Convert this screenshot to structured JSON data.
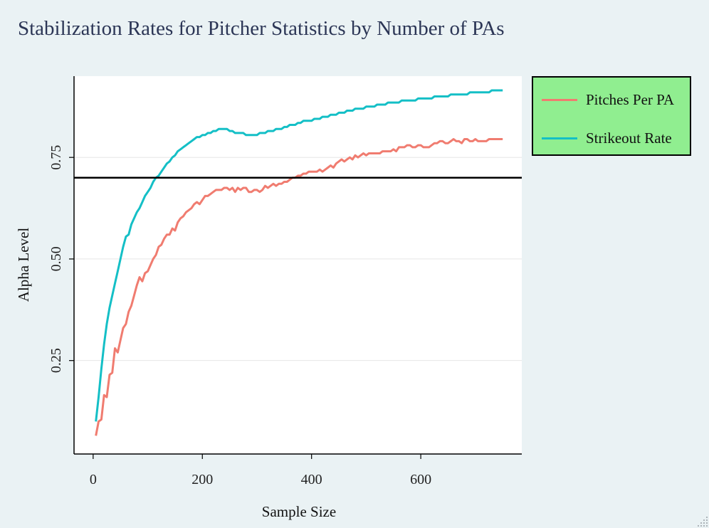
{
  "chart_data": {
    "type": "line",
    "title": "Stabilization Rates for Pitcher Statistics by Number of PAs",
    "xlabel": "Sample Size",
    "ylabel": "Alpha Level",
    "xlim": [
      -35,
      785
    ],
    "ylim": [
      0.02,
      0.95
    ],
    "x_ticks": [
      0,
      200,
      400,
      600
    ],
    "x_tick_labels": [
      "0",
      "200",
      "400",
      "600"
    ],
    "y_ticks": [
      0.25,
      0.5,
      0.75
    ],
    "y_tick_labels": [
      "0.25",
      "0.50",
      "0.75"
    ],
    "grid": "horizontal",
    "reference_line": {
      "y": 0.7,
      "color": "#000000"
    },
    "legend": {
      "placement": "right-top",
      "background": "#90ee90"
    },
    "series": [
      {
        "name": "Pitches Per PA",
        "color": "#f07c70",
        "x": [
          5,
          10,
          15,
          20,
          25,
          30,
          35,
          40,
          45,
          50,
          55,
          60,
          65,
          70,
          75,
          80,
          85,
          90,
          95,
          100,
          105,
          110,
          115,
          120,
          125,
          130,
          135,
          140,
          145,
          150,
          155,
          160,
          165,
          170,
          175,
          180,
          185,
          190,
          195,
          200,
          205,
          210,
          215,
          220,
          225,
          230,
          235,
          240,
          245,
          250,
          255,
          260,
          265,
          270,
          275,
          280,
          285,
          290,
          295,
          300,
          305,
          310,
          315,
          320,
          325,
          330,
          335,
          340,
          345,
          350,
          355,
          360,
          365,
          370,
          375,
          380,
          385,
          390,
          395,
          400,
          405,
          410,
          415,
          420,
          425,
          430,
          435,
          440,
          445,
          450,
          455,
          460,
          465,
          470,
          475,
          480,
          485,
          490,
          495,
          500,
          505,
          510,
          515,
          520,
          525,
          530,
          535,
          540,
          545,
          550,
          555,
          560,
          565,
          570,
          575,
          580,
          585,
          590,
          595,
          600,
          605,
          610,
          615,
          620,
          625,
          630,
          635,
          640,
          645,
          650,
          655,
          660,
          665,
          670,
          675,
          680,
          685,
          690,
          695,
          700,
          705,
          710,
          715,
          720,
          725,
          730,
          735,
          740,
          745,
          750
        ],
        "values": [
          0.065,
          0.1,
          0.105,
          0.165,
          0.16,
          0.215,
          0.22,
          0.28,
          0.27,
          0.3,
          0.33,
          0.34,
          0.37,
          0.385,
          0.41,
          0.435,
          0.455,
          0.445,
          0.465,
          0.47,
          0.485,
          0.5,
          0.51,
          0.53,
          0.535,
          0.55,
          0.56,
          0.56,
          0.575,
          0.57,
          0.59,
          0.6,
          0.605,
          0.615,
          0.62,
          0.625,
          0.635,
          0.64,
          0.635,
          0.645,
          0.655,
          0.655,
          0.66,
          0.665,
          0.67,
          0.67,
          0.67,
          0.675,
          0.675,
          0.67,
          0.675,
          0.665,
          0.675,
          0.67,
          0.675,
          0.675,
          0.665,
          0.665,
          0.67,
          0.67,
          0.665,
          0.67,
          0.68,
          0.675,
          0.68,
          0.685,
          0.68,
          0.685,
          0.685,
          0.69,
          0.69,
          0.695,
          0.7,
          0.7,
          0.705,
          0.705,
          0.71,
          0.71,
          0.715,
          0.715,
          0.715,
          0.715,
          0.72,
          0.715,
          0.72,
          0.725,
          0.73,
          0.725,
          0.735,
          0.74,
          0.745,
          0.74,
          0.745,
          0.75,
          0.745,
          0.755,
          0.75,
          0.755,
          0.76,
          0.755,
          0.76,
          0.76,
          0.76,
          0.76,
          0.76,
          0.765,
          0.765,
          0.765,
          0.765,
          0.77,
          0.765,
          0.775,
          0.775,
          0.775,
          0.78,
          0.78,
          0.775,
          0.775,
          0.78,
          0.78,
          0.775,
          0.775,
          0.775,
          0.78,
          0.785,
          0.785,
          0.79,
          0.79,
          0.785,
          0.785,
          0.79,
          0.795,
          0.79,
          0.79,
          0.785,
          0.795,
          0.795,
          0.79,
          0.79,
          0.795,
          0.79,
          0.79,
          0.79,
          0.79,
          0.795,
          0.795,
          0.795,
          0.795,
          0.795,
          0.795
        ]
      },
      {
        "name": "Strikeout Rate",
        "color": "#14bfc6",
        "x": [
          5,
          10,
          15,
          20,
          25,
          30,
          35,
          40,
          45,
          50,
          55,
          60,
          65,
          70,
          75,
          80,
          85,
          90,
          95,
          100,
          105,
          110,
          115,
          120,
          125,
          130,
          135,
          140,
          145,
          150,
          155,
          160,
          165,
          170,
          175,
          180,
          185,
          190,
          195,
          200,
          205,
          210,
          215,
          220,
          225,
          230,
          235,
          240,
          245,
          250,
          255,
          260,
          265,
          270,
          275,
          280,
          285,
          290,
          295,
          300,
          305,
          310,
          315,
          320,
          325,
          330,
          335,
          340,
          345,
          350,
          355,
          360,
          365,
          370,
          375,
          380,
          385,
          390,
          395,
          400,
          405,
          410,
          415,
          420,
          425,
          430,
          435,
          440,
          445,
          450,
          455,
          460,
          465,
          470,
          475,
          480,
          485,
          490,
          495,
          500,
          505,
          510,
          515,
          520,
          525,
          530,
          535,
          540,
          545,
          550,
          555,
          560,
          565,
          570,
          575,
          580,
          585,
          590,
          595,
          600,
          605,
          610,
          615,
          620,
          625,
          630,
          635,
          640,
          645,
          650,
          655,
          660,
          665,
          670,
          675,
          680,
          685,
          690,
          695,
          700,
          705,
          710,
          715,
          720,
          725,
          730,
          735,
          740,
          745,
          750
        ],
        "values": [
          0.1,
          0.16,
          0.23,
          0.29,
          0.34,
          0.38,
          0.41,
          0.44,
          0.47,
          0.5,
          0.53,
          0.555,
          0.56,
          0.585,
          0.6,
          0.615,
          0.625,
          0.64,
          0.655,
          0.665,
          0.675,
          0.69,
          0.7,
          0.705,
          0.715,
          0.725,
          0.735,
          0.74,
          0.75,
          0.755,
          0.765,
          0.77,
          0.775,
          0.78,
          0.785,
          0.79,
          0.795,
          0.8,
          0.8,
          0.805,
          0.805,
          0.81,
          0.81,
          0.815,
          0.815,
          0.82,
          0.82,
          0.82,
          0.82,
          0.815,
          0.815,
          0.81,
          0.81,
          0.81,
          0.81,
          0.805,
          0.805,
          0.805,
          0.805,
          0.805,
          0.81,
          0.81,
          0.81,
          0.815,
          0.815,
          0.815,
          0.82,
          0.82,
          0.82,
          0.825,
          0.825,
          0.83,
          0.83,
          0.83,
          0.835,
          0.835,
          0.84,
          0.84,
          0.84,
          0.84,
          0.845,
          0.845,
          0.845,
          0.85,
          0.85,
          0.85,
          0.855,
          0.855,
          0.855,
          0.86,
          0.86,
          0.86,
          0.865,
          0.865,
          0.865,
          0.87,
          0.87,
          0.87,
          0.87,
          0.875,
          0.875,
          0.875,
          0.875,
          0.88,
          0.88,
          0.88,
          0.88,
          0.885,
          0.885,
          0.885,
          0.885,
          0.885,
          0.89,
          0.89,
          0.89,
          0.89,
          0.89,
          0.89,
          0.895,
          0.895,
          0.895,
          0.895,
          0.895,
          0.895,
          0.9,
          0.9,
          0.9,
          0.9,
          0.9,
          0.9,
          0.905,
          0.905,
          0.905,
          0.905,
          0.905,
          0.905,
          0.905,
          0.91,
          0.91,
          0.91,
          0.91,
          0.91,
          0.91,
          0.91,
          0.91,
          0.915,
          0.915,
          0.915,
          0.915,
          0.915
        ]
      }
    ]
  }
}
